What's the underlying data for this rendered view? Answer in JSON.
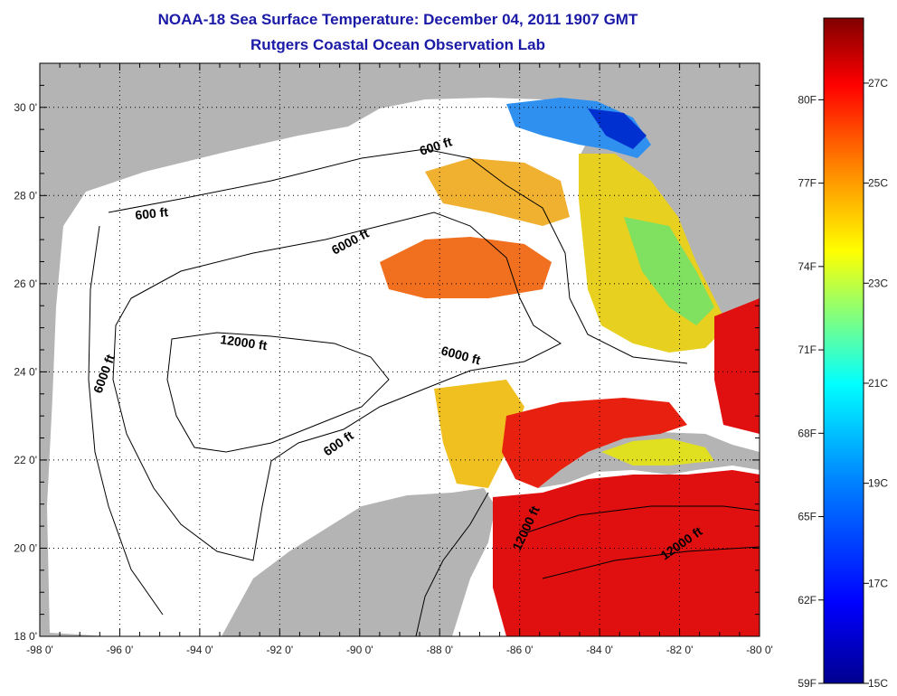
{
  "title": "NOAA-18 Sea Surface Temperature:  December 04, 2011 1907 GMT",
  "subtitle": "Rutgers Coastal Ocean Observation Lab",
  "map": {
    "lon_range": [
      -98,
      -80
    ],
    "lat_range": [
      18,
      31
    ],
    "x_ticks": [
      "-98 0'",
      "-96 0'",
      "-94 0'",
      "-92 0'",
      "-90 0'",
      "-88 0'",
      "-86 0'",
      "-84 0'",
      "-82 0'",
      "-80 0'"
    ],
    "y_ticks": [
      "18 0'",
      "20 0'",
      "22 0'",
      "24 0'",
      "26 0'",
      "28 0'",
      "30 0'"
    ],
    "grid": "dotted",
    "land_color": "#b4b4b4",
    "cloud_color": "#ffffff",
    "contour_labels": {
      "c600_north": "600 ft",
      "c600_west": "600 ft",
      "c600_yucatan": "600 ft",
      "c6000_north": "6000 ft",
      "c6000_west": "6000 ft",
      "c6000_east": "6000 ft",
      "c12000_center": "12000 ft",
      "c12000_yucatan": "12000 ft",
      "c12000_carib": "12000 ft"
    }
  },
  "colorbar": {
    "range_c": [
      15,
      28.3
    ],
    "colors": [
      "#00008f",
      "#0000ff",
      "#0080ff",
      "#00ffff",
      "#80ff80",
      "#ffff00",
      "#ff8000",
      "#ff0000",
      "#800000"
    ],
    "fahrenheit_labels": [
      "80F",
      "77F",
      "74F",
      "71F",
      "68F",
      "65F",
      "62F",
      "59F"
    ],
    "celsius_labels": [
      "27C",
      "25C",
      "23C",
      "21C",
      "19C",
      "17C",
      "15C"
    ]
  }
}
